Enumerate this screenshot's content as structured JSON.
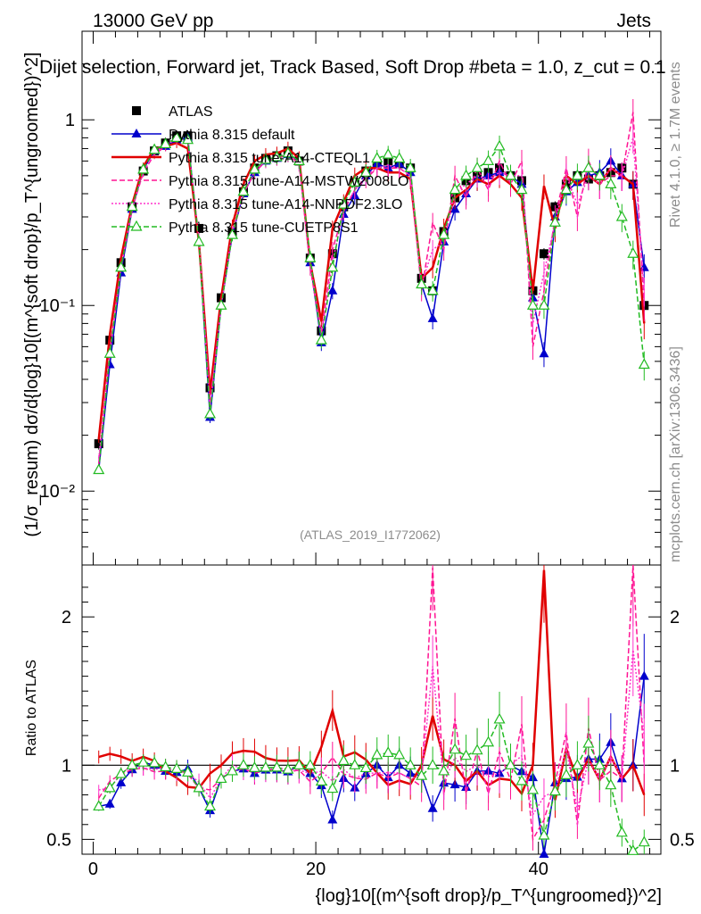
{
  "header": {
    "energy": "13000 GeV pp",
    "process": "Jets",
    "title": "Dijet selection, Forward jet, Track Based, Soft Drop #beta = 1.0, z_cut = 0.1"
  },
  "side": {
    "rivet": "Rivet 4.1.0, ≥ 1.7M events",
    "mcplots": "mcplots.cern.ch [arXiv:1306.3436]"
  },
  "analysis_tag": "(ATLAS_2019_I1772062)",
  "axes": {
    "upper_ylabel": "(1/σ_resum) dσ/d{log}10[(m^{soft drop}/p_T^{ungroomed})^2]",
    "lower_ylabel": "Ratio to ATLAS",
    "xlabel": "{log}10[(m^{soft drop}/p_T^{ungroomed})^2]",
    "x_ticks": [
      "0",
      "20",
      "40"
    ],
    "upper_y_ticks": [
      "10⁻²",
      "10⁻¹",
      "1"
    ],
    "ratio_y_ticks": [
      "0.5",
      "1",
      "2"
    ]
  },
  "legend": [
    {
      "label": "ATLAS",
      "color": "#000000",
      "style": "marker-square"
    },
    {
      "label": "Pythia 8.315 default",
      "color": "#0000cc",
      "style": "solid-triangle"
    },
    {
      "label": "Pythia 8.315 tune-A14-CTEQL1",
      "color": "#e00000",
      "style": "solid-thick"
    },
    {
      "label": "Pythia 8.315 tune-A14-MSTW2008LO",
      "color": "#ff1493",
      "style": "dashed"
    },
    {
      "label": "Pythia 8.315 tune-A14-NNPDF2.3LO",
      "color": "#ff33cc",
      "style": "dotted"
    },
    {
      "label": "Pythia 8.315 tune-CUETP8S1",
      "color": "#22bb22",
      "style": "dashed-open-triangle"
    }
  ],
  "chart_data": {
    "type": "line",
    "xlim": [
      -1,
      51
    ],
    "ylim_upper": [
      0.004,
      3.0
    ],
    "ylim_ratio": [
      0.4,
      2.35
    ],
    "x": [
      0.5,
      1.5,
      2.5,
      3.5,
      4.5,
      5.5,
      6.5,
      7.5,
      8.5,
      9.5,
      10.5,
      11.5,
      12.5,
      13.5,
      14.5,
      15.5,
      16.5,
      17.5,
      18.5,
      19.5,
      20.5,
      21.5,
      22.5,
      23.5,
      24.5,
      25.5,
      26.5,
      27.5,
      28.5,
      29.5,
      30.5,
      31.5,
      32.5,
      33.5,
      34.5,
      35.5,
      36.5,
      37.5,
      38.5,
      39.5,
      40.5,
      41.5,
      42.5,
      43.5,
      44.5,
      45.5,
      46.5,
      47.5,
      48.5,
      49.5
    ],
    "series": [
      {
        "name": "ATLAS",
        "values": [
          0.018,
          0.065,
          0.17,
          0.34,
          0.53,
          0.68,
          0.75,
          0.82,
          0.82,
          0.26,
          0.036,
          0.11,
          0.25,
          0.41,
          0.55,
          0.62,
          0.64,
          0.68,
          0.6,
          0.18,
          0.073,
          0.19,
          0.34,
          0.46,
          0.53,
          0.58,
          0.6,
          0.58,
          0.55,
          0.14,
          0.12,
          0.25,
          0.38,
          0.47,
          0.5,
          0.52,
          0.55,
          0.5,
          0.47,
          0.12,
          0.19,
          0.34,
          0.45,
          0.5,
          0.48,
          0.5,
          0.52,
          0.55,
          0.45,
          0.1
        ]
      },
      {
        "name": "Pythia 8.315 default",
        "values": [
          0.013,
          0.048,
          0.15,
          0.33,
          0.54,
          0.68,
          0.72,
          0.78,
          0.8,
          0.22,
          0.025,
          0.1,
          0.24,
          0.4,
          0.52,
          0.6,
          0.62,
          0.65,
          0.6,
          0.17,
          0.063,
          0.12,
          0.31,
          0.39,
          0.5,
          0.58,
          0.55,
          0.58,
          0.52,
          0.13,
          0.085,
          0.22,
          0.33,
          0.4,
          0.48,
          0.5,
          0.52,
          0.5,
          0.45,
          0.11,
          0.055,
          0.3,
          0.41,
          0.46,
          0.5,
          0.52,
          0.6,
          0.5,
          0.45,
          0.16
        ]
      },
      {
        "name": "Pythia 8.315 tune-A14-CTEQL1",
        "values": [
          0.019,
          0.07,
          0.18,
          0.35,
          0.56,
          0.7,
          0.72,
          0.75,
          0.7,
          0.22,
          0.034,
          0.11,
          0.27,
          0.45,
          0.6,
          0.65,
          0.66,
          0.7,
          0.62,
          0.17,
          0.082,
          0.26,
          0.36,
          0.5,
          0.55,
          0.55,
          0.52,
          0.52,
          0.48,
          0.14,
          0.16,
          0.26,
          0.38,
          0.42,
          0.48,
          0.45,
          0.5,
          0.45,
          0.38,
          0.12,
          0.44,
          0.26,
          0.5,
          0.45,
          0.5,
          0.45,
          0.55,
          0.5,
          0.45,
          0.08
        ]
      },
      {
        "name": "Pythia 8.315 tune-A14-MSTW2008LO",
        "values": [
          0.014,
          0.058,
          0.16,
          0.33,
          0.52,
          0.65,
          0.72,
          0.8,
          0.77,
          0.22,
          0.03,
          0.1,
          0.24,
          0.4,
          0.52,
          0.6,
          0.62,
          0.65,
          0.58,
          0.16,
          0.069,
          0.2,
          0.32,
          0.42,
          0.48,
          0.55,
          0.55,
          0.55,
          0.5,
          0.12,
          0.28,
          0.2,
          0.5,
          0.38,
          0.55,
          0.42,
          0.6,
          0.45,
          0.6,
          0.06,
          0.12,
          0.3,
          0.55,
          0.3,
          0.6,
          0.45,
          0.5,
          0.5,
          1.1,
          0.1
        ]
      },
      {
        "name": "Pythia 8.315 tune-A14-NNPDF2.3LO",
        "values": [
          0.015,
          0.055,
          0.16,
          0.34,
          0.52,
          0.66,
          0.74,
          0.78,
          0.78,
          0.23,
          0.028,
          0.1,
          0.25,
          0.4,
          0.53,
          0.6,
          0.63,
          0.66,
          0.58,
          0.17,
          0.07,
          0.17,
          0.33,
          0.42,
          0.5,
          0.55,
          0.57,
          0.55,
          0.5,
          0.13,
          0.2,
          0.22,
          0.4,
          0.45,
          0.5,
          0.48,
          0.52,
          0.5,
          0.5,
          0.08,
          0.15,
          0.28,
          0.5,
          0.35,
          0.5,
          0.45,
          0.55,
          0.5,
          0.8,
          0.12
        ]
      },
      {
        "name": "Pythia 8.315 tune-CUETP8S1",
        "values": [
          0.013,
          0.055,
          0.16,
          0.34,
          0.54,
          0.69,
          0.74,
          0.8,
          0.78,
          0.22,
          0.026,
          0.1,
          0.24,
          0.41,
          0.54,
          0.61,
          0.63,
          0.66,
          0.6,
          0.18,
          0.065,
          0.16,
          0.35,
          0.46,
          0.52,
          0.62,
          0.65,
          0.62,
          0.55,
          0.13,
          0.12,
          0.24,
          0.42,
          0.5,
          0.55,
          0.6,
          0.72,
          0.5,
          0.42,
          0.1,
          0.1,
          0.28,
          0.42,
          0.5,
          0.55,
          0.5,
          0.45,
          0.3,
          0.19,
          0.048
        ]
      }
    ]
  }
}
